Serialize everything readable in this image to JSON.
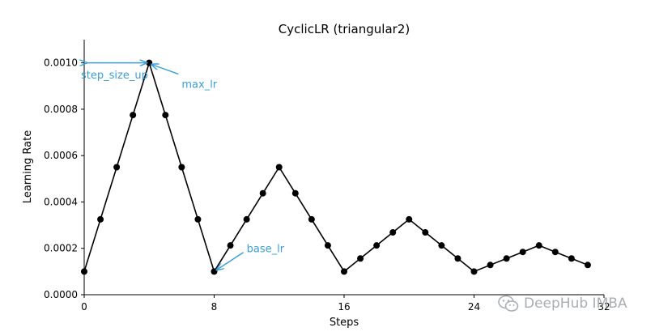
{
  "chart_data": {
    "type": "line",
    "title": "CyclicLR (triangular2)",
    "xlabel": "Steps",
    "ylabel": "Learning Rate",
    "xlim": [
      0,
      32
    ],
    "ylim": [
      0,
      0.0011
    ],
    "x_ticks": [
      0,
      8,
      16,
      24,
      32
    ],
    "x_tick_labels": [
      "0",
      "8",
      "16",
      "24",
      "32"
    ],
    "y_ticks": [
      0,
      0.0002,
      0.0004,
      0.0006,
      0.0008,
      0.001
    ],
    "y_tick_labels": [
      "0.0000",
      "0.0002",
      "0.0004",
      "0.0006",
      "0.0008",
      "0.0010"
    ],
    "series": [
      {
        "x": [
          0,
          1,
          2,
          3,
          4,
          5,
          6,
          7,
          8,
          9,
          10,
          11,
          12,
          13,
          14,
          15,
          16,
          17,
          18,
          19,
          20,
          21,
          22,
          23,
          24,
          25,
          26,
          27,
          28,
          29,
          30,
          31
        ],
        "y": [
          0.0001,
          0.000325,
          0.00055,
          0.000775,
          0.001,
          0.000775,
          0.00055,
          0.000325,
          0.0001,
          0.0002125,
          0.000325,
          0.0004375,
          0.00055,
          0.0004375,
          0.000325,
          0.0002125,
          0.0001,
          0.00015625,
          0.0002125,
          0.00026875,
          0.000325,
          0.00026875,
          0.0002125,
          0.00015625,
          0.0001,
          0.000128125,
          0.00015625,
          0.000184375,
          0.0002125,
          0.000184375,
          0.00015625,
          0.000128125
        ],
        "color": "#000000",
        "marker": "circle"
      }
    ],
    "annotations": [
      {
        "text": "step_size_up",
        "type": "double-arrow",
        "from": [
          0,
          0.001
        ],
        "to": [
          4,
          0.001
        ],
        "text_at": [
          0,
          0.00095
        ]
      },
      {
        "text": "max_lr",
        "type": "arrow",
        "target": [
          4,
          0.001
        ],
        "text_at": [
          6,
          0.00091
        ]
      },
      {
        "text": "base_lr",
        "type": "arrow",
        "target": [
          8,
          0.0001
        ],
        "text_at": [
          10,
          0.0002
        ]
      }
    ],
    "annotation_color": "#3a9fd9",
    "grid": false
  },
  "watermark": {
    "text": "DeepHub IMBA",
    "icon": "wechat-icon"
  }
}
